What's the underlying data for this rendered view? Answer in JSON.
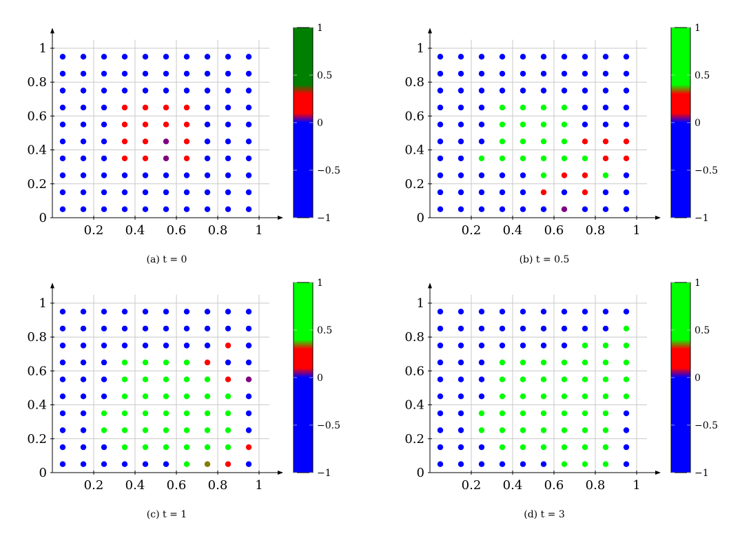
{
  "chart_data": [
    {
      "type": "scatter",
      "caption": "(a) t = 0",
      "xlim": [
        0,
        1.1
      ],
      "ylim": [
        0,
        1.1
      ],
      "x_ticks": [
        0.2,
        0.4,
        0.6,
        0.8,
        1
      ],
      "y_ticks": [
        0,
        0.2,
        0.4,
        0.6,
        0.8,
        1
      ],
      "grid": true,
      "colorbar": {
        "min": -1,
        "max": 1,
        "ticks": [
          -1,
          -0.5,
          0,
          0.5,
          1
        ],
        "colors": [
          "#0000ff",
          "#ff0000",
          "#008000"
        ]
      },
      "grid_points": {
        "x": [
          0.05,
          0.15,
          0.25,
          0.35,
          0.45,
          0.55,
          0.65,
          0.75,
          0.85,
          0.95
        ],
        "y": [
          0.05,
          0.15,
          0.25,
          0.35,
          0.45,
          0.55,
          0.65,
          0.75,
          0.85,
          0.95
        ]
      },
      "default_value": -1,
      "points": [
        {
          "x": 0.35,
          "y": 0.65,
          "v": 0.1
        },
        {
          "x": 0.45,
          "y": 0.65,
          "v": 0.25
        },
        {
          "x": 0.55,
          "y": 0.65,
          "v": 0.25
        },
        {
          "x": 0.65,
          "y": 0.65,
          "v": 0.25
        },
        {
          "x": 0.35,
          "y": 0.55,
          "v": 0.25
        },
        {
          "x": 0.45,
          "y": 0.55,
          "v": 0.25
        },
        {
          "x": 0.55,
          "y": 0.55,
          "v": 0.25
        },
        {
          "x": 0.65,
          "y": 0.55,
          "v": 0.25
        },
        {
          "x": 0.35,
          "y": 0.45,
          "v": 0.25
        },
        {
          "x": 0.45,
          "y": 0.45,
          "v": 0.25
        },
        {
          "x": 0.55,
          "y": 0.45,
          "v": 0.05
        },
        {
          "x": 0.65,
          "y": 0.45,
          "v": 0.25
        },
        {
          "x": 0.35,
          "y": 0.35,
          "v": 0.25
        },
        {
          "x": 0.45,
          "y": 0.35,
          "v": 0.25
        },
        {
          "x": 0.55,
          "y": 0.35,
          "v": 0.05
        },
        {
          "x": 0.65,
          "y": 0.35,
          "v": 0.25
        }
      ]
    },
    {
      "type": "scatter",
      "caption": "(b) t = 0.5",
      "xlim": [
        0,
        1.1
      ],
      "ylim": [
        0,
        1.1
      ],
      "x_ticks": [
        0.2,
        0.4,
        0.6,
        0.8,
        1
      ],
      "y_ticks": [
        0,
        0.2,
        0.4,
        0.6,
        0.8,
        1
      ],
      "grid": true,
      "colorbar": {
        "min": -1,
        "max": 1,
        "ticks": [
          -1,
          -0.5,
          0,
          0.5,
          1
        ],
        "colors": [
          "#0000ff",
          "#ff0000",
          "#00ff00"
        ]
      },
      "grid_points": {
        "x": [
          0.05,
          0.15,
          0.25,
          0.35,
          0.45,
          0.55,
          0.65,
          0.75,
          0.85,
          0.95
        ],
        "y": [
          0.05,
          0.15,
          0.25,
          0.35,
          0.45,
          0.55,
          0.65,
          0.75,
          0.85,
          0.95
        ]
      },
      "default_value": -1,
      "points": [
        {
          "x": 0.35,
          "y": 0.65,
          "v": 1
        },
        {
          "x": 0.45,
          "y": 0.65,
          "v": 1
        },
        {
          "x": 0.55,
          "y": 0.65,
          "v": 1
        },
        {
          "x": 0.65,
          "y": 0.65,
          "v": 1
        },
        {
          "x": 0.35,
          "y": 0.55,
          "v": 1
        },
        {
          "x": 0.45,
          "y": 0.55,
          "v": 1
        },
        {
          "x": 0.55,
          "y": 0.55,
          "v": 1
        },
        {
          "x": 0.65,
          "y": 0.55,
          "v": 1
        },
        {
          "x": 0.35,
          "y": 0.45,
          "v": 1
        },
        {
          "x": 0.45,
          "y": 0.45,
          "v": 1
        },
        {
          "x": 0.55,
          "y": 0.45,
          "v": 1
        },
        {
          "x": 0.65,
          "y": 0.45,
          "v": 1
        },
        {
          "x": 0.75,
          "y": 0.45,
          "v": 0.25
        },
        {
          "x": 0.85,
          "y": 0.45,
          "v": 0.25
        },
        {
          "x": 0.95,
          "y": 0.45,
          "v": 0.25
        },
        {
          "x": 0.25,
          "y": 0.35,
          "v": 1
        },
        {
          "x": 0.35,
          "y": 0.35,
          "v": 1
        },
        {
          "x": 0.45,
          "y": 0.35,
          "v": 1
        },
        {
          "x": 0.55,
          "y": 0.35,
          "v": 1
        },
        {
          "x": 0.65,
          "y": 0.35,
          "v": 1
        },
        {
          "x": 0.75,
          "y": 0.35,
          "v": 1
        },
        {
          "x": 0.85,
          "y": 0.35,
          "v": 0.25
        },
        {
          "x": 0.95,
          "y": 0.35,
          "v": 0.25
        },
        {
          "x": 0.55,
          "y": 0.25,
          "v": 0.4
        },
        {
          "x": 0.65,
          "y": 0.25,
          "v": 0.25
        },
        {
          "x": 0.75,
          "y": 0.25,
          "v": 0.25
        },
        {
          "x": 0.85,
          "y": 0.25,
          "v": 0.4
        },
        {
          "x": 0.55,
          "y": 0.15,
          "v": 0.25
        },
        {
          "x": 0.75,
          "y": 0.15,
          "v": 0.1
        },
        {
          "x": 0.65,
          "y": 0.05,
          "v": 0.05
        }
      ]
    },
    {
      "type": "scatter",
      "caption": "(c) t = 1",
      "xlim": [
        0,
        1.1
      ],
      "ylim": [
        0,
        1.1
      ],
      "x_ticks": [
        0.2,
        0.4,
        0.6,
        0.8,
        1
      ],
      "y_ticks": [
        0,
        0.2,
        0.4,
        0.6,
        0.8,
        1
      ],
      "grid": true,
      "colorbar": {
        "min": -1,
        "max": 1,
        "ticks": [
          -1,
          -0.5,
          0,
          0.5,
          1
        ],
        "colors": [
          "#0000ff",
          "#ff0000",
          "#00ff00"
        ]
      },
      "grid_points": {
        "x": [
          0.05,
          0.15,
          0.25,
          0.35,
          0.45,
          0.55,
          0.65,
          0.75,
          0.85,
          0.95
        ],
        "y": [
          0.05,
          0.15,
          0.25,
          0.35,
          0.45,
          0.55,
          0.65,
          0.75,
          0.85,
          0.95
        ]
      },
      "default_value": -1,
      "points": [
        {
          "x": 0.85,
          "y": 0.75,
          "v": 0.1
        },
        {
          "x": 0.35,
          "y": 0.65,
          "v": 1
        },
        {
          "x": 0.45,
          "y": 0.65,
          "v": 1
        },
        {
          "x": 0.55,
          "y": 0.65,
          "v": 1
        },
        {
          "x": 0.65,
          "y": 0.65,
          "v": 1
        },
        {
          "x": 0.75,
          "y": 0.65,
          "v": 0.1
        },
        {
          "x": 0.35,
          "y": 0.55,
          "v": 1
        },
        {
          "x": 0.45,
          "y": 0.55,
          "v": 1
        },
        {
          "x": 0.55,
          "y": 0.55,
          "v": 1
        },
        {
          "x": 0.65,
          "y": 0.55,
          "v": 1
        },
        {
          "x": 0.75,
          "y": 0.55,
          "v": 0.55
        },
        {
          "x": 0.85,
          "y": 0.55,
          "v": 0.25
        },
        {
          "x": 0.95,
          "y": 0.55,
          "v": 0.05
        },
        {
          "x": 0.35,
          "y": 0.45,
          "v": 1
        },
        {
          "x": 0.45,
          "y": 0.45,
          "v": 1
        },
        {
          "x": 0.55,
          "y": 0.45,
          "v": 1
        },
        {
          "x": 0.65,
          "y": 0.45,
          "v": 1
        },
        {
          "x": 0.75,
          "y": 0.45,
          "v": 1
        },
        {
          "x": 0.85,
          "y": 0.45,
          "v": 1
        },
        {
          "x": 0.25,
          "y": 0.35,
          "v": 1
        },
        {
          "x": 0.35,
          "y": 0.35,
          "v": 1
        },
        {
          "x": 0.45,
          "y": 0.35,
          "v": 1
        },
        {
          "x": 0.55,
          "y": 0.35,
          "v": 1
        },
        {
          "x": 0.65,
          "y": 0.35,
          "v": 1
        },
        {
          "x": 0.75,
          "y": 0.35,
          "v": 1
        },
        {
          "x": 0.85,
          "y": 0.35,
          "v": 1
        },
        {
          "x": 0.25,
          "y": 0.25,
          "v": 1
        },
        {
          "x": 0.35,
          "y": 0.25,
          "v": 1
        },
        {
          "x": 0.45,
          "y": 0.25,
          "v": 1
        },
        {
          "x": 0.55,
          "y": 0.25,
          "v": 1
        },
        {
          "x": 0.65,
          "y": 0.25,
          "v": 1
        },
        {
          "x": 0.75,
          "y": 0.25,
          "v": 1
        },
        {
          "x": 0.85,
          "y": 0.25,
          "v": 1
        },
        {
          "x": 0.35,
          "y": 0.15,
          "v": 1
        },
        {
          "x": 0.45,
          "y": 0.15,
          "v": 1
        },
        {
          "x": 0.55,
          "y": 0.15,
          "v": 1
        },
        {
          "x": 0.65,
          "y": 0.15,
          "v": 1
        },
        {
          "x": 0.75,
          "y": 0.15,
          "v": 1
        },
        {
          "x": 0.85,
          "y": 0.15,
          "v": 0.55
        },
        {
          "x": 0.95,
          "y": 0.15,
          "v": 0.25
        },
        {
          "x": 0.65,
          "y": 0.05,
          "v": 1
        },
        {
          "x": 0.75,
          "y": 0.05,
          "v": 0.35
        },
        {
          "x": 0.85,
          "y": 0.05,
          "v": 0.25
        }
      ]
    },
    {
      "type": "scatter",
      "caption": "(d) t = 3",
      "xlim": [
        0,
        1.1
      ],
      "ylim": [
        0,
        1.1
      ],
      "x_ticks": [
        0.2,
        0.4,
        0.6,
        0.8,
        1
      ],
      "y_ticks": [
        0,
        0.2,
        0.4,
        0.6,
        0.8,
        1
      ],
      "grid": true,
      "colorbar": {
        "min": -1,
        "max": 1,
        "ticks": [
          -1,
          -0.5,
          0,
          0.5,
          1
        ],
        "colors": [
          "#0000ff",
          "#ff0000",
          "#00ff00"
        ]
      },
      "grid_points": {
        "x": [
          0.05,
          0.15,
          0.25,
          0.35,
          0.45,
          0.55,
          0.65,
          0.75,
          0.85,
          0.95
        ],
        "y": [
          0.05,
          0.15,
          0.25,
          0.35,
          0.45,
          0.55,
          0.65,
          0.75,
          0.85,
          0.95
        ]
      },
      "default_value": -1,
      "points": [
        {
          "x": 0.95,
          "y": 0.85,
          "v": 1
        },
        {
          "x": 0.75,
          "y": 0.75,
          "v": 1
        },
        {
          "x": 0.85,
          "y": 0.75,
          "v": 1
        },
        {
          "x": 0.95,
          "y": 0.75,
          "v": 1
        },
        {
          "x": 0.35,
          "y": 0.65,
          "v": 1
        },
        {
          "x": 0.45,
          "y": 0.65,
          "v": 1
        },
        {
          "x": 0.55,
          "y": 0.65,
          "v": 1
        },
        {
          "x": 0.65,
          "y": 0.65,
          "v": 1
        },
        {
          "x": 0.75,
          "y": 0.65,
          "v": 1
        },
        {
          "x": 0.85,
          "y": 0.65,
          "v": 1
        },
        {
          "x": 0.95,
          "y": 0.65,
          "v": 1
        },
        {
          "x": 0.35,
          "y": 0.55,
          "v": 1
        },
        {
          "x": 0.45,
          "y": 0.55,
          "v": 1
        },
        {
          "x": 0.55,
          "y": 0.55,
          "v": 1
        },
        {
          "x": 0.65,
          "y": 0.55,
          "v": 1
        },
        {
          "x": 0.75,
          "y": 0.55,
          "v": 1
        },
        {
          "x": 0.85,
          "y": 0.55,
          "v": 1
        },
        {
          "x": 0.95,
          "y": 0.55,
          "v": 1
        },
        {
          "x": 0.35,
          "y": 0.45,
          "v": 1
        },
        {
          "x": 0.45,
          "y": 0.45,
          "v": 1
        },
        {
          "x": 0.55,
          "y": 0.45,
          "v": 1
        },
        {
          "x": 0.65,
          "y": 0.45,
          "v": 1
        },
        {
          "x": 0.75,
          "y": 0.45,
          "v": 1
        },
        {
          "x": 0.85,
          "y": 0.45,
          "v": 1
        },
        {
          "x": 0.95,
          "y": 0.45,
          "v": 1
        },
        {
          "x": 0.25,
          "y": 0.35,
          "v": 1
        },
        {
          "x": 0.35,
          "y": 0.35,
          "v": 1
        },
        {
          "x": 0.45,
          "y": 0.35,
          "v": 1
        },
        {
          "x": 0.55,
          "y": 0.35,
          "v": 1
        },
        {
          "x": 0.65,
          "y": 0.35,
          "v": 1
        },
        {
          "x": 0.75,
          "y": 0.35,
          "v": 1
        },
        {
          "x": 0.85,
          "y": 0.35,
          "v": 1
        },
        {
          "x": 0.25,
          "y": 0.25,
          "v": 1
        },
        {
          "x": 0.35,
          "y": 0.25,
          "v": 1
        },
        {
          "x": 0.45,
          "y": 0.25,
          "v": 1
        },
        {
          "x": 0.55,
          "y": 0.25,
          "v": 1
        },
        {
          "x": 0.65,
          "y": 0.25,
          "v": 1
        },
        {
          "x": 0.75,
          "y": 0.25,
          "v": 1
        },
        {
          "x": 0.85,
          "y": 0.25,
          "v": 1
        },
        {
          "x": 0.35,
          "y": 0.15,
          "v": 1
        },
        {
          "x": 0.45,
          "y": 0.15,
          "v": 1
        },
        {
          "x": 0.55,
          "y": 0.15,
          "v": 1
        },
        {
          "x": 0.65,
          "y": 0.15,
          "v": 1
        },
        {
          "x": 0.75,
          "y": 0.15,
          "v": 1
        },
        {
          "x": 0.85,
          "y": 0.15,
          "v": 1
        },
        {
          "x": 0.65,
          "y": 0.05,
          "v": 1
        },
        {
          "x": 0.75,
          "y": 0.05,
          "v": 1
        },
        {
          "x": 0.85,
          "y": 0.05,
          "v": 1
        }
      ]
    }
  ]
}
